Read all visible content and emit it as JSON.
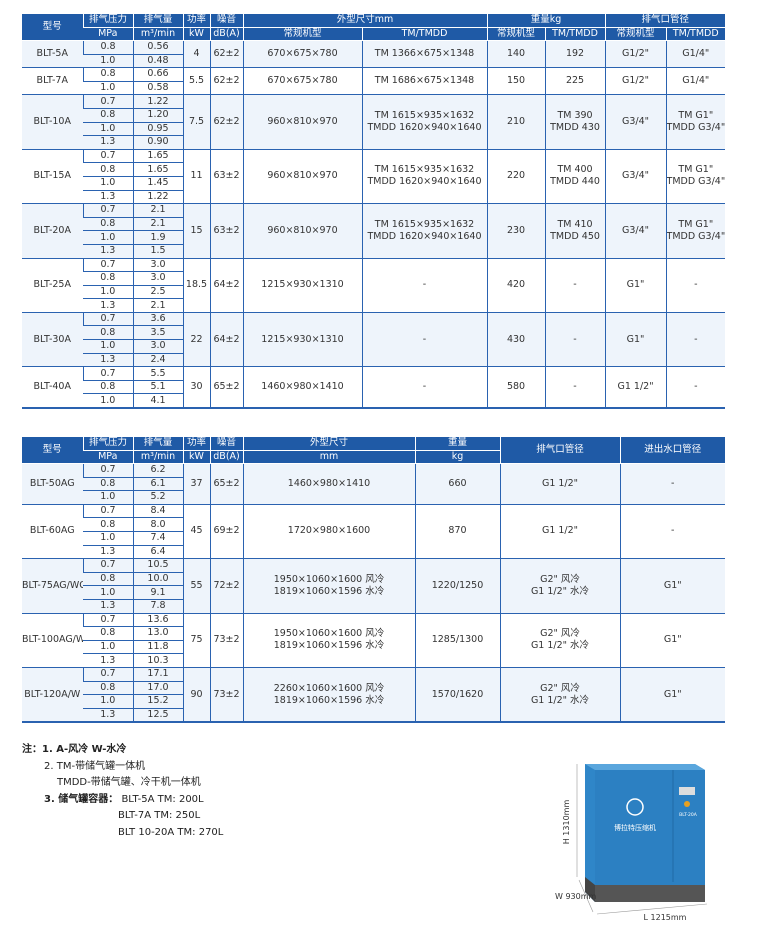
{
  "table1": {
    "header_top": [
      "型号",
      "排气压力",
      "排气量",
      "功率",
      "噪音",
      "外型尺寸mm",
      "重量kg",
      "排气口管径"
    ],
    "header_sub": [
      "MPa",
      "m³/min",
      "kW",
      "dB(A)",
      "常规机型",
      "TM/TMDD",
      "常规机型",
      "TM/TMDD",
      "常规机型",
      "TM/TMDD"
    ],
    "rows": [
      {
        "model": "BLT-5A",
        "pressure": [
          "0.8",
          "1.0"
        ],
        "flow": [
          "0.56",
          "0.48"
        ],
        "kw": "4",
        "db": "62±2",
        "dim": "670×675×780",
        "dim_tm": "TM 1366×675×1348",
        "wt": "140",
        "wt_tm": "192",
        "pipe": "G1/2\"",
        "pipe_tm": "G1/4\""
      },
      {
        "model": "BLT-7A",
        "pressure": [
          "0.8",
          "1.0"
        ],
        "flow": [
          "0.66",
          "0.58"
        ],
        "kw": "5.5",
        "db": "62±2",
        "dim": "670×675×780",
        "dim_tm": "TM 1686×675×1348",
        "wt": "150",
        "wt_tm": "225",
        "pipe": "G1/2\"",
        "pipe_tm": "G1/4\""
      },
      {
        "model": "BLT-10A",
        "pressure": [
          "0.7",
          "0.8",
          "1.0",
          "1.3"
        ],
        "flow": [
          "1.22",
          "1.20",
          "0.95",
          "0.90"
        ],
        "kw": "7.5",
        "db": "62±2",
        "dim": "960×810×970",
        "dim_tm": "TM 1615×935×1632\nTMDD 1620×940×1640",
        "wt": "210",
        "wt_tm": "TM 390\nTMDD 430",
        "pipe": "G3/4\"",
        "pipe_tm": "TM G1\"\nTMDD G3/4\""
      },
      {
        "model": "BLT-15A",
        "pressure": [
          "0.7",
          "0.8",
          "1.0",
          "1.3"
        ],
        "flow": [
          "1.65",
          "1.65",
          "1.45",
          "1.22"
        ],
        "kw": "11",
        "db": "63±2",
        "dim": "960×810×970",
        "dim_tm": "TM 1615×935×1632\nTMDD 1620×940×1640",
        "wt": "220",
        "wt_tm": "TM 400\nTMDD 440",
        "pipe": "G3/4\"",
        "pipe_tm": "TM G1\"\nTMDD G3/4\""
      },
      {
        "model": "BLT-20A",
        "pressure": [
          "0.7",
          "0.8",
          "1.0",
          "1.3"
        ],
        "flow": [
          "2.1",
          "2.1",
          "1.9",
          "1.5"
        ],
        "kw": "15",
        "db": "63±2",
        "dim": "960×810×970",
        "dim_tm": "TM 1615×935×1632\nTMDD 1620×940×1640",
        "wt": "230",
        "wt_tm": "TM 410\nTMDD 450",
        "pipe": "G3/4\"",
        "pipe_tm": "TM G1\"\nTMDD G3/4\""
      },
      {
        "model": "BLT-25A",
        "pressure": [
          "0.7",
          "0.8",
          "1.0",
          "1.3"
        ],
        "flow": [
          "3.0",
          "3.0",
          "2.5",
          "2.1"
        ],
        "kw": "18.5",
        "db": "64±2",
        "dim": "1215×930×1310",
        "dim_tm": "-",
        "wt": "420",
        "wt_tm": "-",
        "pipe": "G1\"",
        "pipe_tm": "-"
      },
      {
        "model": "BLT-30A",
        "pressure": [
          "0.7",
          "0.8",
          "1.0",
          "1.3"
        ],
        "flow": [
          "3.6",
          "3.5",
          "3.0",
          "2.4"
        ],
        "kw": "22",
        "db": "64±2",
        "dim": "1215×930×1310",
        "dim_tm": "-",
        "wt": "430",
        "wt_tm": "-",
        "pipe": "G1\"",
        "pipe_tm": "-"
      },
      {
        "model": "BLT-40A",
        "pressure": [
          "0.7",
          "0.8",
          "1.0"
        ],
        "flow": [
          "5.5",
          "5.1",
          "4.1"
        ],
        "kw": "30",
        "db": "65±2",
        "dim": "1460×980×1410",
        "dim_tm": "-",
        "wt": "580",
        "wt_tm": "-",
        "pipe": "G1 1/2\"",
        "pipe_tm": "-"
      }
    ]
  },
  "table2": {
    "header_top": [
      "型号",
      "排气压力",
      "排气量",
      "功率",
      "噪音",
      "外型尺寸",
      "重量",
      "排气口管径",
      "进出水口管径"
    ],
    "header_sub": [
      "MPa",
      "m³/min",
      "kW",
      "dB(A)",
      "mm",
      "kg"
    ],
    "rows": [
      {
        "model": "BLT-50AG",
        "pressure": [
          "0.7",
          "0.8",
          "1.0"
        ],
        "flow": [
          "6.2",
          "6.1",
          "5.2"
        ],
        "kw": "37",
        "db": "65±2",
        "dim": "1460×980×1410",
        "wt": "660",
        "pipe": "G1 1/2\"",
        "water": "-"
      },
      {
        "model": "BLT-60AG",
        "pressure": [
          "0.7",
          "0.8",
          "1.0",
          "1.3"
        ],
        "flow": [
          "8.4",
          "8.0",
          "7.4",
          "6.4"
        ],
        "kw": "45",
        "db": "69±2",
        "dim": "1720×980×1600",
        "wt": "870",
        "pipe": "G1 1/2\"",
        "water": "-"
      },
      {
        "model": "BLT-75AG/WG",
        "pressure": [
          "0.7",
          "0.8",
          "1.0",
          "1.3"
        ],
        "flow": [
          "10.5",
          "10.0",
          "9.1",
          "7.8"
        ],
        "kw": "55",
        "db": "72±2",
        "dim": "1950×1060×1600 风冷\n1819×1060×1596 水冷",
        "wt": "1220/1250",
        "pipe": "G2\" 风冷\nG1 1/2\" 水冷",
        "water": "G1\""
      },
      {
        "model": "BLT-100AG/WG",
        "pressure": [
          "0.7",
          "0.8",
          "1.0",
          "1.3"
        ],
        "flow": [
          "13.6",
          "13.0",
          "11.8",
          "10.3"
        ],
        "kw": "75",
        "db": "73±2",
        "dim": "1950×1060×1600 风冷\n1819×1060×1596 水冷",
        "wt": "1285/1300",
        "pipe": "G2\" 风冷\nG1 1/2\" 水冷",
        "water": "G1\""
      },
      {
        "model": "BLT-120A/W",
        "pressure": [
          "0.7",
          "0.8",
          "1.0",
          "1.3"
        ],
        "flow": [
          "17.1",
          "17.0",
          "15.2",
          "12.5"
        ],
        "kw": "90",
        "db": "73±2",
        "dim": "2260×1060×1600 风冷\n1819×1060×1596 水冷",
        "wt": "1570/1620",
        "pipe": "G2\" 风冷\nG1 1/2\" 水冷",
        "water": "G1\""
      }
    ]
  },
  "notes": {
    "prefix": "注：",
    "lines": [
      "1. A-风冷 W-水冷",
      "2. TM-带储气罐一体机",
      "TMDD-带储气罐、冷干机一体机",
      "3. 储气罐容器：",
      "BLT-5A TM:  200L",
      "BLT-7A TM:  250L",
      "BLT 10-20A  TM:  270L"
    ]
  },
  "product_image": {
    "height_label": "H 1310mm",
    "width_label": "W 930mm",
    "length_label": "L 1215mm",
    "brand_text": "博拉特压缩机",
    "model_plate": "BLT-20A",
    "body_color": "#2f86c8"
  },
  "colors": {
    "header": "#1f5aa6",
    "row_alt": "#eef4fb",
    "border": "#2a62b0"
  }
}
